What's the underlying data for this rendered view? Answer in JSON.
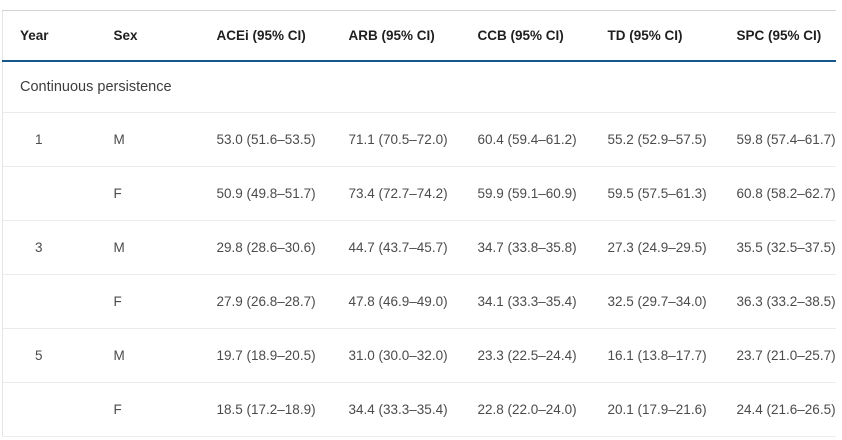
{
  "table": {
    "columns": [
      "Year",
      "Sex",
      "ACEi (95% CI)",
      "ARB (95% CI)",
      "CCB (95% CI)",
      "TD (95% CI)",
      "SPC (95% CI)"
    ],
    "section_label": "Continuous persistence",
    "rows": [
      {
        "year": "1",
        "sex": "M",
        "values": [
          "53.0 (51.6–53.5)",
          "71.1 (70.5–72.0)",
          "60.4 (59.4–61.2)",
          "55.2 (52.9–57.5)",
          "59.8 (57.4–61.7)"
        ]
      },
      {
        "year": "",
        "sex": "F",
        "values": [
          "50.9 (49.8–51.7)",
          "73.4 (72.7–74.2)",
          "59.9 (59.1–60.9)",
          "59.5 (57.5–61.3)",
          "60.8 (58.2–62.7)"
        ]
      },
      {
        "year": "3",
        "sex": "M",
        "values": [
          "29.8 (28.6–30.6)",
          "44.7 (43.7–45.7)",
          "34.7 (33.8–35.8)",
          "27.3 (24.9–29.5)",
          "35.5 (32.5–37.5)"
        ]
      },
      {
        "year": "",
        "sex": "F",
        "values": [
          "27.9 (26.8–28.7)",
          "47.8 (46.9–49.0)",
          "34.1 (33.3–35.4)",
          "32.5 (29.7–34.0)",
          "36.3 (33.2–38.5)"
        ]
      },
      {
        "year": "5",
        "sex": "M",
        "values": [
          "19.7 (18.9–20.5)",
          "31.0 (30.0–32.0)",
          "23.3 (22.5–24.4)",
          "16.1 (13.8–17.7)",
          "23.7 (21.0–25.7)"
        ]
      },
      {
        "year": "",
        "sex": "F",
        "values": [
          "18.5 (17.2–18.9)",
          "34.4 (33.3–35.4)",
          "22.8 (22.0–24.0)",
          "20.1 (17.9–21.6)",
          "24.4 (21.6–26.5)"
        ]
      }
    ],
    "colors": {
      "header_rule": "#15568C",
      "top_border": "#d2d2d2",
      "row_separator": "#ebebeb",
      "header_text": "#1f1f1f",
      "body_text": "#4b4b4b"
    }
  },
  "chart_data": {
    "type": "table",
    "title": "Continuous persistence",
    "columns": [
      "Year",
      "Sex",
      "ACEi (95% CI)",
      "ARB (95% CI)",
      "CCB (95% CI)",
      "TD (95% CI)",
      "SPC (95% CI)"
    ],
    "rows": [
      [
        "1",
        "M",
        "53.0 (51.6–53.5)",
        "71.1 (70.5–72.0)",
        "60.4 (59.4–61.2)",
        "55.2 (52.9–57.5)",
        "59.8 (57.4–61.7)"
      ],
      [
        "",
        "F",
        "50.9 (49.8–51.7)",
        "73.4 (72.7–74.2)",
        "59.9 (59.1–60.9)",
        "59.5 (57.5–61.3)",
        "60.8 (58.2–62.7)"
      ],
      [
        "3",
        "M",
        "29.8 (28.6–30.6)",
        "44.7 (43.7–45.7)",
        "34.7 (33.8–35.8)",
        "27.3 (24.9–29.5)",
        "35.5 (32.5–37.5)"
      ],
      [
        "",
        "F",
        "27.9 (26.8–28.7)",
        "47.8 (46.9–49.0)",
        "34.1 (33.3–35.4)",
        "32.5 (29.7–34.0)",
        "36.3 (33.2–38.5)"
      ],
      [
        "5",
        "M",
        "19.7 (18.9–20.5)",
        "31.0 (30.0–32.0)",
        "23.3 (22.5–24.4)",
        "16.1 (13.8–17.7)",
        "23.7 (21.0–25.7)"
      ],
      [
        "",
        "F",
        "18.5 (17.2–18.9)",
        "34.4 (33.3–35.4)",
        "22.8 (22.0–24.0)",
        "20.1 (17.9–21.6)",
        "24.4 (21.6–26.5)"
      ]
    ]
  }
}
